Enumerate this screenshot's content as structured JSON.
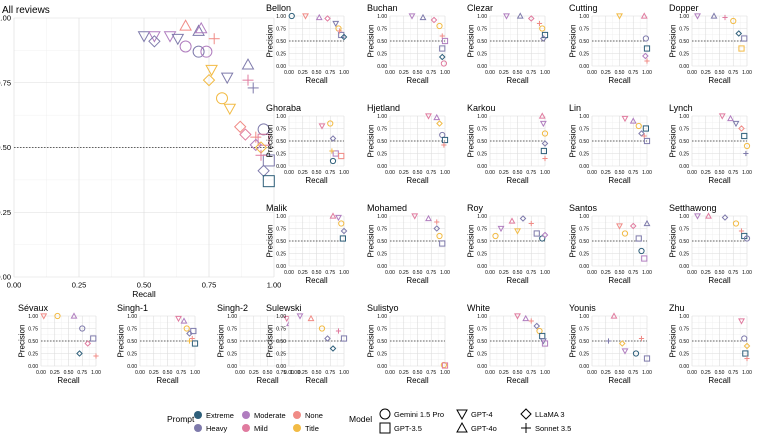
{
  "chart_data": {
    "type": "scatter",
    "x_label": "Recall",
    "y_label": "Precision",
    "axis_range": [
      0,
      1
    ],
    "tick_labels": [
      "0.00",
      "0.25",
      "0.50",
      "0.75",
      "1.00"
    ],
    "reference_line": {
      "y": 0.5,
      "style": "dotted"
    },
    "overview_panel": {
      "title": "All reviews",
      "points": [
        {
          "prompt": "Heavy",
          "model": "GPT-4",
          "x": 0.5,
          "y": 0.93
        },
        {
          "prompt": "Moderate",
          "model": "GPT-4",
          "x": 0.54,
          "y": 0.93
        },
        {
          "prompt": "Heavy",
          "model": "LLaMA 3",
          "x": 0.54,
          "y": 0.91
        },
        {
          "prompt": "Moderate",
          "model": "GPT-4",
          "x": 0.6,
          "y": 0.93
        },
        {
          "prompt": "Heavy",
          "model": "GPT-4",
          "x": 0.63,
          "y": 0.92
        },
        {
          "prompt": "None",
          "model": "GPT-4o",
          "x": 0.66,
          "y": 0.97
        },
        {
          "prompt": "Moderate",
          "model": "Gemini 1.5 Pro",
          "x": 0.66,
          "y": 0.89
        },
        {
          "prompt": "Heavy",
          "model": "GPT-4o",
          "x": 0.71,
          "y": 0.95
        },
        {
          "prompt": "Moderate",
          "model": "GPT-4o",
          "x": 0.72,
          "y": 0.96
        },
        {
          "prompt": "Heavy",
          "model": "Gemini 1.5 Pro",
          "x": 0.71,
          "y": 0.87
        },
        {
          "prompt": "Moderate",
          "model": "Gemini 1.5 Pro",
          "x": 0.74,
          "y": 0.87
        },
        {
          "prompt": "None",
          "model": "Sonnet 3.5",
          "x": 0.77,
          "y": 0.92
        },
        {
          "prompt": "Title",
          "model": "GPT-4",
          "x": 0.76,
          "y": 0.8
        },
        {
          "prompt": "Title",
          "model": "LLaMA 3",
          "x": 0.75,
          "y": 0.76
        },
        {
          "prompt": "Heavy",
          "model": "GPT-4",
          "x": 0.82,
          "y": 0.77
        },
        {
          "prompt": "Heavy",
          "model": "GPT-4o",
          "x": 0.9,
          "y": 0.82
        },
        {
          "prompt": "Mild",
          "model": "Sonnet 3.5",
          "x": 0.9,
          "y": 0.76
        },
        {
          "prompt": "Heavy",
          "model": "Sonnet 3.5",
          "x": 0.92,
          "y": 0.73
        },
        {
          "prompt": "Title",
          "model": "Gemini 1.5 Pro",
          "x": 0.8,
          "y": 0.69
        },
        {
          "prompt": "Title",
          "model": "GPT-4",
          "x": 0.83,
          "y": 0.65
        },
        {
          "prompt": "None",
          "model": "LLaMA 3",
          "x": 0.87,
          "y": 0.58
        },
        {
          "prompt": "Mild",
          "model": "LLaMA 3",
          "x": 0.89,
          "y": 0.55
        },
        {
          "prompt": "None",
          "model": "Sonnet 3.5",
          "x": 0.93,
          "y": 0.54
        },
        {
          "prompt": "Heavy",
          "model": "Gemini 1.5 Pro",
          "x": 0.96,
          "y": 0.57
        },
        {
          "prompt": "Mild",
          "model": "GPT-3.5",
          "x": 0.96,
          "y": 0.53
        },
        {
          "prompt": "Moderate",
          "model": "LLaMA 3",
          "x": 0.93,
          "y": 0.51
        },
        {
          "prompt": "Title",
          "model": "LLaMA 3",
          "x": 0.95,
          "y": 0.5
        },
        {
          "prompt": "Heavy",
          "model": "GPT-3.5",
          "x": 0.98,
          "y": 0.45
        },
        {
          "prompt": "Mild",
          "model": "Sonnet 3.5",
          "x": 0.95,
          "y": 0.47
        },
        {
          "prompt": "Heavy",
          "model": "LLaMA 3",
          "x": 0.96,
          "y": 0.41
        },
        {
          "prompt": "Extreme",
          "model": "GPT-3.5",
          "x": 0.98,
          "y": 0.37
        }
      ]
    },
    "facet_titles": [
      "Bellon",
      "Buchan",
      "Clezar",
      "Cutting",
      "Dopper",
      "Ghoraba",
      "Hjetland",
      "Karkou",
      "Lin",
      "Lynch",
      "Malik",
      "Mohamed",
      "Roy",
      "Santos",
      "Setthawong",
      "Sévaux",
      "Singh-1",
      "Singh-2",
      "Sulewski",
      "Sulistyo",
      "White",
      "Younis",
      "Zhu"
    ],
    "legend": {
      "prompt_title": "Prompt",
      "prompts": [
        {
          "name": "Extreme",
          "color": "#2e5f7a"
        },
        {
          "name": "Heavy",
          "color": "#7e7aab"
        },
        {
          "name": "Moderate",
          "color": "#b07dbf"
        },
        {
          "name": "Mild",
          "color": "#e07b9f"
        },
        {
          "name": "None",
          "color": "#f08b86"
        },
        {
          "name": "Title",
          "color": "#f2bb45"
        }
      ],
      "model_title": "Model",
      "models": [
        {
          "name": "Gemini 1.5 Pro",
          "shape": "circle"
        },
        {
          "name": "GPT-3.5",
          "shape": "square"
        },
        {
          "name": "GPT-4",
          "shape": "triangle-down"
        },
        {
          "name": "GPT-4o",
          "shape": "triangle-up"
        },
        {
          "name": "LLaMA 3",
          "shape": "diamond"
        },
        {
          "name": "Sonnet 3.5",
          "shape": "plus"
        }
      ]
    }
  }
}
